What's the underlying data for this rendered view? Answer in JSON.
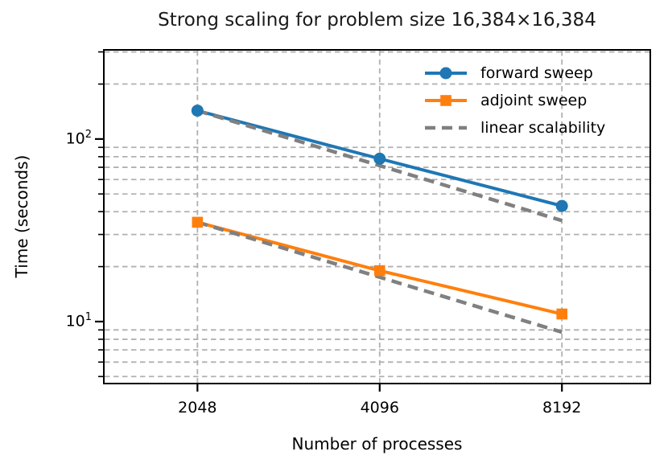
{
  "chart_data": {
    "type": "line",
    "title": "Strong scaling for problem size 16,384×16,384",
    "xlabel": "Number of processes",
    "ylabel": "Time (seconds)",
    "xscale": "log2",
    "yscale": "log10",
    "xlim": [
      1430,
      11500
    ],
    "ylim": [
      4.53,
      311
    ],
    "x": [
      2048,
      4096,
      8192
    ],
    "series": [
      {
        "name": "forward sweep",
        "values": [
          143,
          78,
          43
        ],
        "color": "#1f77b4",
        "marker": "circle",
        "style": "solid",
        "in_legend": true
      },
      {
        "name": "adjoint sweep",
        "values": [
          35,
          19,
          11
        ],
        "color": "#ff7f0e",
        "marker": "square",
        "style": "solid",
        "in_legend": true
      },
      {
        "name": "linear scalability",
        "values": [
          143,
          71.5,
          35.75
        ],
        "color": "#808080",
        "marker": "none",
        "style": "dashed",
        "in_legend": true
      },
      {
        "name": "linear scalability (adjoint reference)",
        "values": [
          35,
          17.5,
          8.75
        ],
        "color": "#808080",
        "marker": "none",
        "style": "dashed",
        "in_legend": false
      }
    ],
    "legend": [
      {
        "label": "forward sweep",
        "color": "#1f77b4",
        "marker": "circle",
        "style": "solid"
      },
      {
        "label": "adjoint sweep",
        "color": "#ff7f0e",
        "marker": "square",
        "style": "solid"
      },
      {
        "label": "linear scalability",
        "color": "#808080",
        "marker": "none",
        "style": "dashed"
      }
    ],
    "legend_position": "upper right",
    "legend_frame": false,
    "xticks": [
      {
        "value": 2048,
        "label": "2048"
      },
      {
        "value": 4096,
        "label": "4096"
      },
      {
        "value": 8192,
        "label": "8192"
      }
    ],
    "yticks": [
      {
        "value": 10,
        "base": "10",
        "exp": "1"
      },
      {
        "value": 100,
        "base": "10",
        "exp": "2"
      }
    ],
    "grid": {
      "style": "dashed",
      "color": "#b0b0b0",
      "x_values": [
        2048,
        4096,
        8192
      ],
      "y_values": [
        5,
        6,
        7,
        8,
        9,
        20,
        30,
        40,
        50,
        60,
        70,
        80,
        90,
        200,
        300
      ]
    }
  }
}
